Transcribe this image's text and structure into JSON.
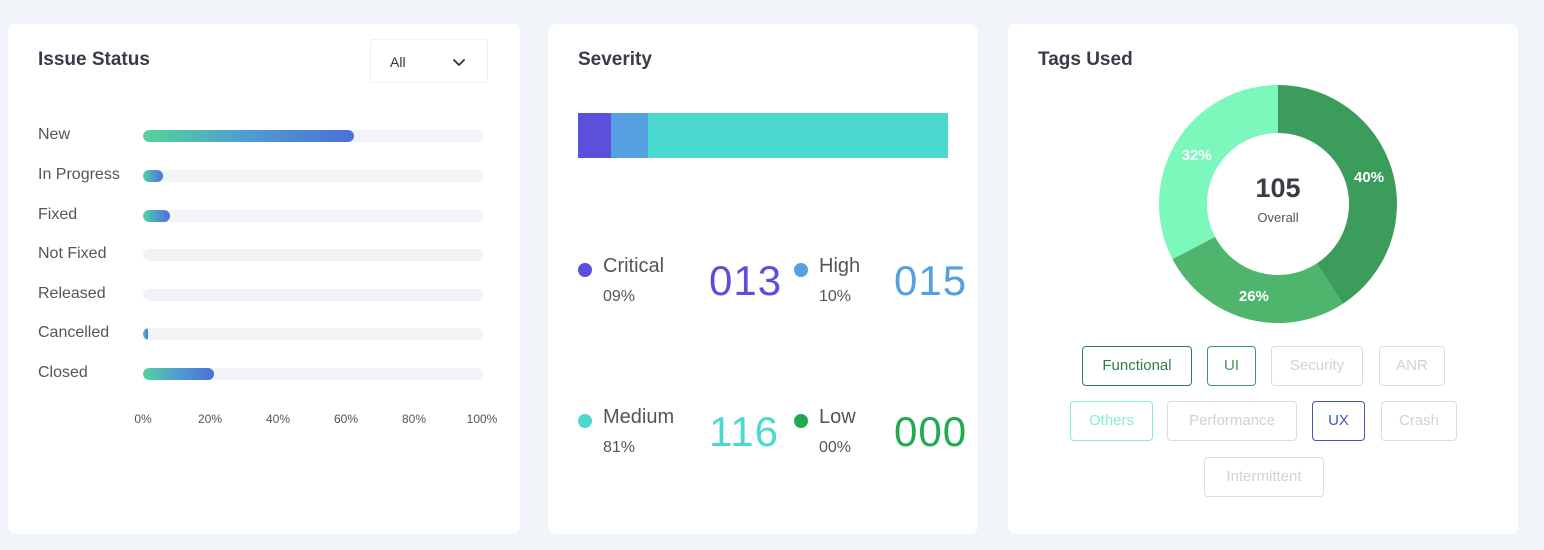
{
  "issue_status": {
    "title": "Issue Status",
    "filter": {
      "selected": "All"
    },
    "rows": [
      {
        "label": "New",
        "fraction": 0.62
      },
      {
        "label": "In Progress",
        "fraction": 0.06
      },
      {
        "label": "Fixed",
        "fraction": 0.08
      },
      {
        "label": "Not Fixed",
        "fraction": 0
      },
      {
        "label": "Released",
        "fraction": 0
      },
      {
        "label": "Cancelled",
        "fraction": 0.015
      },
      {
        "label": "Closed",
        "fraction": 0.21
      }
    ],
    "axis_ticks": [
      "0%",
      "20%",
      "40%",
      "60%",
      "80%",
      "100%"
    ]
  },
  "severity": {
    "title": "Severity",
    "items": [
      {
        "name": "Critical",
        "percent": "09%",
        "count": "013",
        "color": "#5b4fdb",
        "share": 0.09
      },
      {
        "name": "High",
        "percent": "10%",
        "count": "015",
        "color": "#54a0e0",
        "share": 0.1
      },
      {
        "name": "Medium",
        "percent": "81%",
        "count": "116",
        "color": "#4bd8cf",
        "share": 0.81
      },
      {
        "name": "Low",
        "percent": "00%",
        "count": "000",
        "color": "#1faa4f",
        "share": 0
      }
    ]
  },
  "tags": {
    "title": "Tags Used",
    "total": "105",
    "total_label": "Overall",
    "slices": [
      {
        "label": "40%",
        "value": 40,
        "color": "#3c9c5c"
      },
      {
        "label": "26%",
        "value": 26,
        "color": "#4fb56c"
      },
      {
        "label": "32%",
        "value": 32,
        "color": "#7df8bd"
      }
    ],
    "chips": [
      {
        "label": "Functional",
        "color": "#2f7d4d",
        "active": true
      },
      {
        "label": "UI",
        "color": "#3e9a5c",
        "active": true
      },
      {
        "label": "Security",
        "color": "#dcdcdc",
        "active": false
      },
      {
        "label": "ANR",
        "color": "#dcdcdc",
        "active": false
      },
      {
        "label": "Others",
        "color": "#86f0c4",
        "active": true
      },
      {
        "label": "Performance",
        "color": "#dcdcdc",
        "active": false
      },
      {
        "label": "UX",
        "color": "#4357b8",
        "active": true
      },
      {
        "label": "Crash",
        "color": "#dcdcdc",
        "active": false
      },
      {
        "label": "Intermittent",
        "color": "#dcdcdc",
        "active": false
      }
    ]
  }
}
